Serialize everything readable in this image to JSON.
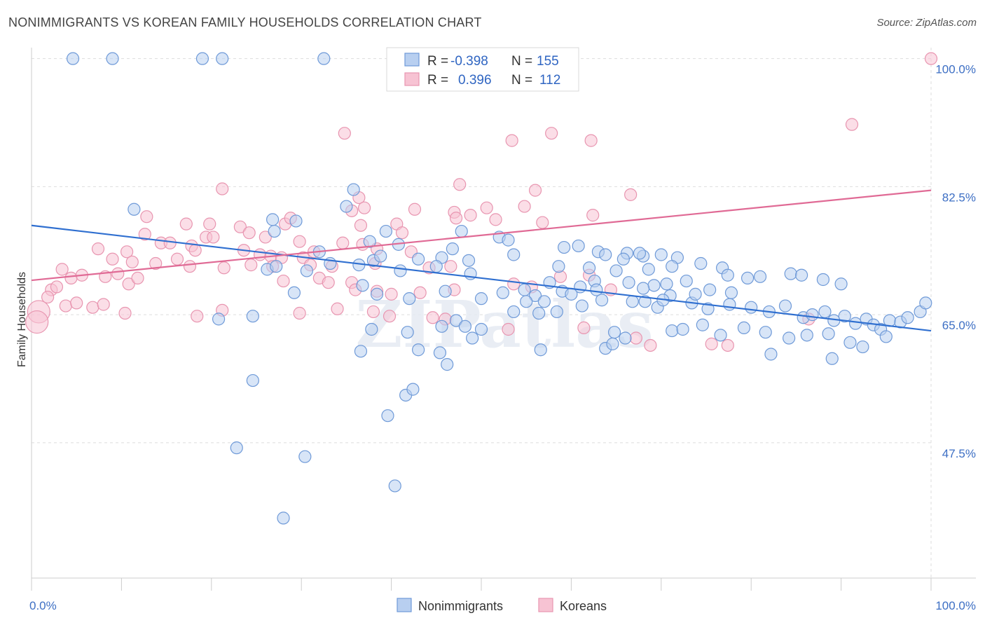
{
  "title": "NONIMMIGRANTS VS KOREAN FAMILY HOUSEHOLDS CORRELATION CHART",
  "source": "Source: ZipAtlas.com",
  "watermark": "ZIPatlas",
  "colors": {
    "blue_fill": "#b8cff0",
    "blue_stroke": "#6f9ad8",
    "blue_line": "#2f6fd0",
    "pink_fill": "#f7c3d3",
    "pink_stroke": "#e895b0",
    "pink_line": "#e06a95",
    "tick_label": "#3d6fc4",
    "grid": "#dddddd"
  },
  "legend": {
    "rows": [
      {
        "r_label": "R =",
        "r_value": "-0.398",
        "n_label": "N =",
        "n_value": "155"
      },
      {
        "r_label": "R =",
        "r_value": "0.396",
        "n_label": "N =",
        "n_value": "112"
      }
    ]
  },
  "bottom_legend": [
    "Nonimmigrants",
    "Koreans"
  ],
  "chart_data": {
    "type": "scatter",
    "title": "NONIMMIGRANTS VS KOREAN FAMILY HOUSEHOLDS CORRELATION CHART",
    "xlabel": "",
    "ylabel": "Family Households",
    "xlim": [
      0,
      100
    ],
    "ylim": [
      29,
      101.5
    ],
    "x_tick_labels": [
      "0.0%",
      "100.0%"
    ],
    "y_ticks": [
      47.5,
      65.0,
      82.5,
      100.0
    ],
    "y_tick_labels": [
      "47.5%",
      "65.0%",
      "82.5%",
      "100.0%"
    ],
    "grid": true,
    "legend_position": "top-center",
    "series": [
      {
        "name": "Nonimmigrants",
        "trend": [
          [
            0,
            77.2
          ],
          [
            100,
            62.8
          ]
        ],
        "points": [
          [
            4.6,
            100
          ],
          [
            9.0,
            100
          ],
          [
            19.0,
            100
          ],
          [
            21.2,
            100
          ],
          [
            32.5,
            100
          ],
          [
            11.4,
            79.4
          ],
          [
            35.8,
            82.1
          ],
          [
            35.0,
            79.8
          ],
          [
            26.8,
            78.0
          ],
          [
            29.4,
            77.8
          ],
          [
            27.0,
            76.4
          ],
          [
            39.4,
            76.4
          ],
          [
            47.8,
            76.4
          ],
          [
            52.0,
            75.6
          ],
          [
            53.0,
            75.2
          ],
          [
            37.6,
            75.0
          ],
          [
            40.8,
            74.6
          ],
          [
            46.8,
            74.0
          ],
          [
            59.2,
            74.2
          ],
          [
            60.8,
            74.4
          ],
          [
            63.0,
            73.6
          ],
          [
            63.8,
            73.2
          ],
          [
            66.2,
            73.4
          ],
          [
            68.0,
            73.0
          ],
          [
            70.0,
            73.2
          ],
          [
            71.8,
            72.8
          ],
          [
            67.6,
            73.4
          ],
          [
            65.8,
            72.6
          ],
          [
            53.6,
            73.2
          ],
          [
            48.6,
            72.4
          ],
          [
            45.6,
            72.8
          ],
          [
            43.0,
            72.6
          ],
          [
            38.0,
            72.4
          ],
          [
            33.2,
            72.0
          ],
          [
            32.0,
            73.6
          ],
          [
            38.8,
            73.0
          ],
          [
            30.6,
            71.0
          ],
          [
            26.2,
            71.2
          ],
          [
            27.2,
            71.6
          ],
          [
            36.4,
            71.8
          ],
          [
            41.0,
            71.0
          ],
          [
            45.0,
            71.6
          ],
          [
            48.8,
            70.6
          ],
          [
            58.6,
            71.6
          ],
          [
            62.0,
            71.4
          ],
          [
            65.0,
            71.0
          ],
          [
            68.6,
            71.2
          ],
          [
            71.2,
            71.6
          ],
          [
            74.4,
            72.0
          ],
          [
            76.8,
            71.4
          ],
          [
            77.4,
            70.4
          ],
          [
            79.6,
            70.0
          ],
          [
            81.0,
            70.2
          ],
          [
            84.4,
            70.6
          ],
          [
            85.6,
            70.4
          ],
          [
            88.0,
            69.8
          ],
          [
            90.0,
            69.2
          ],
          [
            72.8,
            69.6
          ],
          [
            70.6,
            69.2
          ],
          [
            69.2,
            69.0
          ],
          [
            68.0,
            68.6
          ],
          [
            66.4,
            69.4
          ],
          [
            62.6,
            69.6
          ],
          [
            61.0,
            68.8
          ],
          [
            59.0,
            68.2
          ],
          [
            54.8,
            68.4
          ],
          [
            52.4,
            68.0
          ],
          [
            50.0,
            67.2
          ],
          [
            46.0,
            68.2
          ],
          [
            42.0,
            67.2
          ],
          [
            38.4,
            67.8
          ],
          [
            36.8,
            69.0
          ],
          [
            29.2,
            68.0
          ],
          [
            57.6,
            69.4
          ],
          [
            60.0,
            67.8
          ],
          [
            63.4,
            67.0
          ],
          [
            66.8,
            66.8
          ],
          [
            69.6,
            66.0
          ],
          [
            73.4,
            66.6
          ],
          [
            75.2,
            65.8
          ],
          [
            77.6,
            66.4
          ],
          [
            80.0,
            66.0
          ],
          [
            82.0,
            65.4
          ],
          [
            83.8,
            66.2
          ],
          [
            85.8,
            64.6
          ],
          [
            86.8,
            65.0
          ],
          [
            88.2,
            65.4
          ],
          [
            89.2,
            64.2
          ],
          [
            90.4,
            64.8
          ],
          [
            91.6,
            63.8
          ],
          [
            92.8,
            64.4
          ],
          [
            93.6,
            63.6
          ],
          [
            94.4,
            63.0
          ],
          [
            95.4,
            64.2
          ],
          [
            96.6,
            64.0
          ],
          [
            97.4,
            64.6
          ],
          [
            98.8,
            65.4
          ],
          [
            99.4,
            66.6
          ],
          [
            77.8,
            68.0
          ],
          [
            75.4,
            68.4
          ],
          [
            73.8,
            67.8
          ],
          [
            71.0,
            67.6
          ],
          [
            70.2,
            67.0
          ],
          [
            68.2,
            66.8
          ],
          [
            62.8,
            68.4
          ],
          [
            61.2,
            66.2
          ],
          [
            58.4,
            65.4
          ],
          [
            56.0,
            67.6
          ],
          [
            55.0,
            66.8
          ],
          [
            57.0,
            66.8
          ],
          [
            20.8,
            64.4
          ],
          [
            24.6,
            64.8
          ],
          [
            37.8,
            63.0
          ],
          [
            41.8,
            62.6
          ],
          [
            45.6,
            63.4
          ],
          [
            47.2,
            64.2
          ],
          [
            48.2,
            63.4
          ],
          [
            50.0,
            63.0
          ],
          [
            53.6,
            65.4
          ],
          [
            56.4,
            65.2
          ],
          [
            64.8,
            62.6
          ],
          [
            66.0,
            61.8
          ],
          [
            71.2,
            62.8
          ],
          [
            72.4,
            63.0
          ],
          [
            74.6,
            63.6
          ],
          [
            76.6,
            62.2
          ],
          [
            79.2,
            63.2
          ],
          [
            81.6,
            62.6
          ],
          [
            84.2,
            61.8
          ],
          [
            86.2,
            62.2
          ],
          [
            88.6,
            62.4
          ],
          [
            91.0,
            61.2
          ],
          [
            92.4,
            60.6
          ],
          [
            95.0,
            62.0
          ],
          [
            89.0,
            59.0
          ],
          [
            63.8,
            60.4
          ],
          [
            56.6,
            60.2
          ],
          [
            64.6,
            61.0
          ],
          [
            36.6,
            60.0
          ],
          [
            43.0,
            60.2
          ],
          [
            45.4,
            59.8
          ],
          [
            82.2,
            59.6
          ],
          [
            49.0,
            61.8
          ],
          [
            46.2,
            58.2
          ],
          [
            24.6,
            56.0
          ],
          [
            41.6,
            54.0
          ],
          [
            42.4,
            54.8
          ],
          [
            39.6,
            51.2
          ],
          [
            22.8,
            46.8
          ],
          [
            30.4,
            45.6
          ],
          [
            40.4,
            41.6
          ],
          [
            28.0,
            37.2
          ]
        ]
      },
      {
        "name": "Koreans",
        "trend": [
          [
            0,
            69.7
          ],
          [
            100,
            82.0
          ]
        ],
        "points": [
          [
            100,
            100
          ],
          [
            91.2,
            91.0
          ],
          [
            34.8,
            89.8
          ],
          [
            53.4,
            88.8
          ],
          [
            57.8,
            89.8
          ],
          [
            62.2,
            88.8
          ],
          [
            21.2,
            82.2
          ],
          [
            47.6,
            82.8
          ],
          [
            56.0,
            82.0
          ],
          [
            66.6,
            81.4
          ],
          [
            36.4,
            81.0
          ],
          [
            42.6,
            79.4
          ],
          [
            47.0,
            79.0
          ],
          [
            50.6,
            79.6
          ],
          [
            54.8,
            79.8
          ],
          [
            35.6,
            79.2
          ],
          [
            37.0,
            79.6
          ],
          [
            12.8,
            78.4
          ],
          [
            17.2,
            77.4
          ],
          [
            19.8,
            77.4
          ],
          [
            23.2,
            77.0
          ],
          [
            28.2,
            77.4
          ],
          [
            28.8,
            78.2
          ],
          [
            36.6,
            77.2
          ],
          [
            40.6,
            77.4
          ],
          [
            41.2,
            76.2
          ],
          [
            47.2,
            78.2
          ],
          [
            48.8,
            78.6
          ],
          [
            51.6,
            78.0
          ],
          [
            56.8,
            77.6
          ],
          [
            62.4,
            78.6
          ],
          [
            24.2,
            76.2
          ],
          [
            26.0,
            75.6
          ],
          [
            29.8,
            75.0
          ],
          [
            31.4,
            73.6
          ],
          [
            34.6,
            74.8
          ],
          [
            36.8,
            74.6
          ],
          [
            38.4,
            74.0
          ],
          [
            12.6,
            76.0
          ],
          [
            14.4,
            74.8
          ],
          [
            15.4,
            74.8
          ],
          [
            17.8,
            74.4
          ],
          [
            19.4,
            75.6
          ],
          [
            20.2,
            75.6
          ],
          [
            18.2,
            73.8
          ],
          [
            23.6,
            73.8
          ],
          [
            25.4,
            73.2
          ],
          [
            26.6,
            73.0
          ],
          [
            27.8,
            72.8
          ],
          [
            30.2,
            72.8
          ],
          [
            31.0,
            71.8
          ],
          [
            33.4,
            71.6
          ],
          [
            38.2,
            72.0
          ],
          [
            42.2,
            73.6
          ],
          [
            44.2,
            71.4
          ],
          [
            46.6,
            71.6
          ],
          [
            7.4,
            74.0
          ],
          [
            9.0,
            72.6
          ],
          [
            10.6,
            73.6
          ],
          [
            11.2,
            72.2
          ],
          [
            13.8,
            72.0
          ],
          [
            16.2,
            72.6
          ],
          [
            17.6,
            71.6
          ],
          [
            21.4,
            71.4
          ],
          [
            24.4,
            71.8
          ],
          [
            26.8,
            71.6
          ],
          [
            28.0,
            69.6
          ],
          [
            32.0,
            70.0
          ],
          [
            33.0,
            69.4
          ],
          [
            35.6,
            69.4
          ],
          [
            36.0,
            68.4
          ],
          [
            38.4,
            68.2
          ],
          [
            40.0,
            67.8
          ],
          [
            43.2,
            68.0
          ],
          [
            47.0,
            68.4
          ],
          [
            53.6,
            69.2
          ],
          [
            55.6,
            68.8
          ],
          [
            58.8,
            70.2
          ],
          [
            62.0,
            70.4
          ],
          [
            64.4,
            68.4
          ],
          [
            3.4,
            71.2
          ],
          [
            4.4,
            70.0
          ],
          [
            5.6,
            70.4
          ],
          [
            8.2,
            70.2
          ],
          [
            9.6,
            70.6
          ],
          [
            10.8,
            69.2
          ],
          [
            11.8,
            70.0
          ],
          [
            2.2,
            68.4
          ],
          [
            2.8,
            68.8
          ],
          [
            1.8,
            67.4
          ],
          [
            3.8,
            66.2
          ],
          [
            5.0,
            66.6
          ],
          [
            6.8,
            66.0
          ],
          [
            8.0,
            66.4
          ],
          [
            10.4,
            65.2
          ],
          [
            18.4,
            64.8
          ],
          [
            21.2,
            65.6
          ],
          [
            29.8,
            65.2
          ],
          [
            34.0,
            65.8
          ],
          [
            38.0,
            65.4
          ],
          [
            39.8,
            64.8
          ],
          [
            44.6,
            64.6
          ],
          [
            46.0,
            64.4
          ],
          [
            53.0,
            63.0
          ],
          [
            61.4,
            63.2
          ],
          [
            67.2,
            61.8
          ],
          [
            68.8,
            60.8
          ],
          [
            75.6,
            61.0
          ],
          [
            77.4,
            60.8
          ],
          [
            86.4,
            64.4
          ],
          [
            0.8,
            65.4
          ],
          [
            0.6,
            64.0
          ]
        ]
      }
    ]
  }
}
